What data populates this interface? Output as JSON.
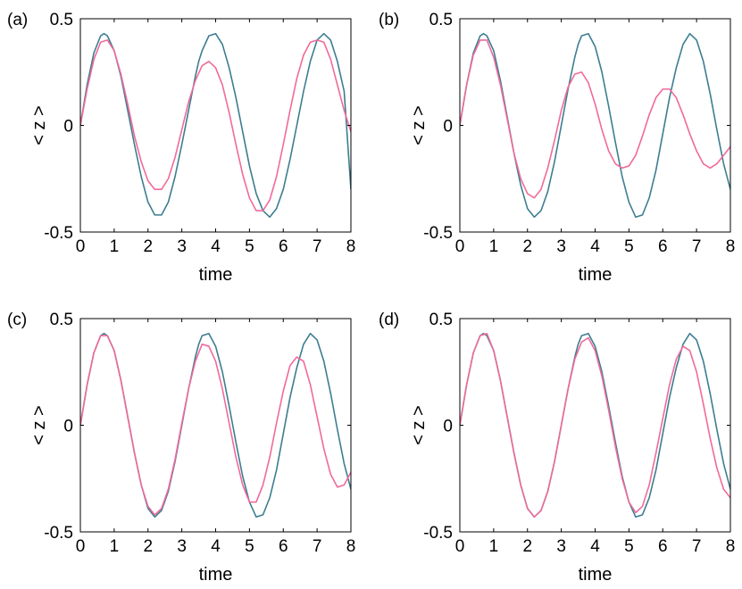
{
  "colors": {
    "reference": "#3d7d91",
    "comparison": "#f06a9b",
    "axis": "#000000"
  },
  "chart_data": [
    {
      "panel_label": "(a)",
      "type": "line",
      "xlabel": "time",
      "ylabel": "< z >",
      "xlim": [
        0,
        8
      ],
      "ylim": [
        -0.5,
        0.5
      ],
      "xticks": [
        "0",
        "1",
        "2",
        "3",
        "4",
        "5",
        "6",
        "7",
        "8"
      ],
      "yticks": [
        "-0.5",
        "0",
        "0.5"
      ],
      "series": [
        {
          "color": "#3d7d91",
          "x": [
            0,
            0.2,
            0.4,
            0.6,
            0.7,
            0.8,
            1.0,
            1.2,
            1.4,
            1.6,
            1.8,
            2.0,
            2.2,
            2.4,
            2.6,
            2.8,
            3.0,
            3.2,
            3.4,
            3.5,
            3.6,
            3.8,
            4.0,
            4.2,
            4.4,
            4.6,
            4.8,
            5.0,
            5.2,
            5.4,
            5.6,
            5.8,
            6.0,
            6.2,
            6.3,
            6.4,
            6.6,
            6.8,
            7.0,
            7.2,
            7.4,
            7.6,
            7.8,
            8.0
          ],
          "y": [
            0,
            0.19,
            0.34,
            0.42,
            0.43,
            0.42,
            0.35,
            0.23,
            0.07,
            -0.09,
            -0.24,
            -0.36,
            -0.42,
            -0.42,
            -0.36,
            -0.24,
            -0.09,
            0.07,
            0.23,
            0.3,
            0.35,
            0.42,
            0.43,
            0.38,
            0.27,
            0.13,
            -0.03,
            -0.19,
            -0.32,
            -0.4,
            -0.43,
            -0.39,
            -0.3,
            -0.16,
            -0.08,
            0,
            0.16,
            0.3,
            0.4,
            0.43,
            0.4,
            0.3,
            0.16,
            -0.3
          ]
        },
        {
          "color": "#f06a9b",
          "x": [
            0,
            0.2,
            0.4,
            0.6,
            0.8,
            1.0,
            1.2,
            1.4,
            1.6,
            1.8,
            2.0,
            2.2,
            2.4,
            2.6,
            2.8,
            3.0,
            3.2,
            3.4,
            3.6,
            3.8,
            4.0,
            4.2,
            4.4,
            4.6,
            4.8,
            5.0,
            5.2,
            5.4,
            5.6,
            5.8,
            6.0,
            6.2,
            6.4,
            6.6,
            6.8,
            7.0,
            7.2,
            7.4,
            7.6,
            7.8,
            8.0
          ],
          "y": [
            0,
            0.17,
            0.31,
            0.39,
            0.4,
            0.35,
            0.24,
            0.1,
            -0.05,
            -0.17,
            -0.26,
            -0.3,
            -0.3,
            -0.25,
            -0.15,
            -0.02,
            0.11,
            0.21,
            0.28,
            0.3,
            0.27,
            0.19,
            0.06,
            -0.09,
            -0.23,
            -0.34,
            -0.4,
            -0.4,
            -0.35,
            -0.24,
            -0.09,
            0.07,
            0.22,
            0.33,
            0.39,
            0.4,
            0.39,
            0.31,
            0.19,
            0.07,
            -0.03
          ]
        }
      ]
    },
    {
      "panel_label": "(b)",
      "type": "line",
      "xlabel": "time",
      "ylabel": "< z >",
      "xlim": [
        0,
        8
      ],
      "ylim": [
        -0.5,
        0.5
      ],
      "xticks": [
        "0",
        "1",
        "2",
        "3",
        "4",
        "5",
        "6",
        "7",
        "8"
      ],
      "yticks": [
        "-0.5",
        "0",
        "0.5"
      ],
      "series": [
        {
          "color": "#3d7d91",
          "x": [
            0,
            0.2,
            0.4,
            0.6,
            0.7,
            0.8,
            1.0,
            1.2,
            1.4,
            1.6,
            1.8,
            2.0,
            2.2,
            2.4,
            2.6,
            2.8,
            3.0,
            3.2,
            3.4,
            3.5,
            3.6,
            3.8,
            4.0,
            4.2,
            4.4,
            4.6,
            4.8,
            5.0,
            5.2,
            5.4,
            5.6,
            5.8,
            6.0,
            6.2,
            6.3,
            6.4,
            6.6,
            6.8,
            7.0,
            7.2,
            7.4,
            7.6,
            7.8,
            8.0
          ],
          "y": [
            0,
            0.19,
            0.34,
            0.42,
            0.43,
            0.42,
            0.35,
            0.21,
            0.04,
            -0.13,
            -0.28,
            -0.39,
            -0.43,
            -0.4,
            -0.31,
            -0.17,
            0,
            0.17,
            0.32,
            0.38,
            0.42,
            0.43,
            0.37,
            0.25,
            0.09,
            -0.08,
            -0.24,
            -0.36,
            -0.43,
            -0.42,
            -0.34,
            -0.21,
            -0.04,
            0.13,
            0.2,
            0.27,
            0.38,
            0.43,
            0.4,
            0.3,
            0.15,
            -0.02,
            -0.18,
            -0.3
          ]
        },
        {
          "color": "#f06a9b",
          "x": [
            0,
            0.2,
            0.4,
            0.6,
            0.8,
            1.0,
            1.2,
            1.4,
            1.6,
            1.8,
            2.0,
            2.2,
            2.4,
            2.6,
            2.8,
            3.0,
            3.2,
            3.4,
            3.6,
            3.8,
            4.0,
            4.2,
            4.4,
            4.6,
            4.8,
            5.0,
            5.2,
            5.4,
            5.6,
            5.8,
            6.0,
            6.2,
            6.4,
            6.6,
            6.8,
            7.0,
            7.2,
            7.4,
            7.6,
            7.8,
            8.0
          ],
          "y": [
            0,
            0.19,
            0.33,
            0.4,
            0.4,
            0.32,
            0.19,
            0.03,
            -0.13,
            -0.25,
            -0.32,
            -0.34,
            -0.3,
            -0.2,
            -0.07,
            0.07,
            0.18,
            0.24,
            0.25,
            0.2,
            0.1,
            -0.02,
            -0.12,
            -0.18,
            -0.2,
            -0.19,
            -0.14,
            -0.05,
            0.05,
            0.13,
            0.17,
            0.17,
            0.13,
            0.05,
            -0.04,
            -0.12,
            -0.18,
            -0.2,
            -0.18,
            -0.14,
            -0.1
          ]
        }
      ]
    },
    {
      "panel_label": "(c)",
      "type": "line",
      "xlabel": "time",
      "ylabel": "< z >",
      "xlim": [
        0,
        8
      ],
      "ylim": [
        -0.5,
        0.5
      ],
      "xticks": [
        "0",
        "1",
        "2",
        "3",
        "4",
        "5",
        "6",
        "7",
        "8"
      ],
      "yticks": [
        "-0.5",
        "0",
        "0.5"
      ],
      "series": [
        {
          "color": "#3d7d91",
          "x": [
            0,
            0.2,
            0.4,
            0.6,
            0.7,
            0.8,
            1.0,
            1.2,
            1.4,
            1.6,
            1.8,
            2.0,
            2.2,
            2.4,
            2.6,
            2.8,
            3.0,
            3.2,
            3.4,
            3.5,
            3.6,
            3.8,
            4.0,
            4.2,
            4.4,
            4.6,
            4.8,
            5.0,
            5.2,
            5.4,
            5.6,
            5.8,
            6.0,
            6.2,
            6.3,
            6.4,
            6.6,
            6.8,
            7.0,
            7.2,
            7.4,
            7.6,
            7.8,
            8.0
          ],
          "y": [
            0,
            0.19,
            0.34,
            0.42,
            0.43,
            0.42,
            0.35,
            0.21,
            0.04,
            -0.13,
            -0.28,
            -0.39,
            -0.43,
            -0.4,
            -0.31,
            -0.17,
            0,
            0.17,
            0.32,
            0.38,
            0.42,
            0.43,
            0.37,
            0.25,
            0.09,
            -0.08,
            -0.24,
            -0.36,
            -0.43,
            -0.42,
            -0.34,
            -0.21,
            -0.04,
            0.13,
            0.2,
            0.27,
            0.38,
            0.43,
            0.4,
            0.3,
            0.15,
            -0.02,
            -0.18,
            -0.3
          ]
        },
        {
          "color": "#f06a9b",
          "x": [
            0,
            0.2,
            0.4,
            0.6,
            0.8,
            1.0,
            1.2,
            1.4,
            1.6,
            1.8,
            2.0,
            2.2,
            2.4,
            2.6,
            2.8,
            3.0,
            3.2,
            3.4,
            3.6,
            3.8,
            4.0,
            4.2,
            4.4,
            4.6,
            4.8,
            5.0,
            5.2,
            5.4,
            5.6,
            5.8,
            6.0,
            6.2,
            6.4,
            6.6,
            6.8,
            7.0,
            7.2,
            7.4,
            7.6,
            7.8,
            8.0
          ],
          "y": [
            0,
            0.19,
            0.34,
            0.42,
            0.42,
            0.35,
            0.21,
            0.04,
            -0.13,
            -0.28,
            -0.38,
            -0.42,
            -0.39,
            -0.3,
            -0.16,
            0.01,
            0.17,
            0.3,
            0.38,
            0.37,
            0.3,
            0.17,
            0.01,
            -0.15,
            -0.28,
            -0.36,
            -0.36,
            -0.28,
            -0.15,
            0.01,
            0.16,
            0.28,
            0.32,
            0.3,
            0.19,
            0.04,
            -0.11,
            -0.23,
            -0.29,
            -0.28,
            -0.22
          ]
        }
      ]
    },
    {
      "panel_label": "(d)",
      "type": "line",
      "xlabel": "time",
      "ylabel": "< z >",
      "xlim": [
        0,
        8
      ],
      "ylim": [
        -0.5,
        0.5
      ],
      "xticks": [
        "0",
        "1",
        "2",
        "3",
        "4",
        "5",
        "6",
        "7",
        "8"
      ],
      "yticks": [
        "-0.5",
        "0",
        "0.5"
      ],
      "series": [
        {
          "color": "#3d7d91",
          "x": [
            0,
            0.2,
            0.4,
            0.6,
            0.7,
            0.8,
            1.0,
            1.2,
            1.4,
            1.6,
            1.8,
            2.0,
            2.2,
            2.4,
            2.6,
            2.8,
            3.0,
            3.2,
            3.4,
            3.5,
            3.6,
            3.8,
            4.0,
            4.2,
            4.4,
            4.6,
            4.8,
            5.0,
            5.2,
            5.4,
            5.6,
            5.8,
            6.0,
            6.2,
            6.3,
            6.4,
            6.6,
            6.8,
            7.0,
            7.2,
            7.4,
            7.6,
            7.8,
            8.0
          ],
          "y": [
            0,
            0.19,
            0.34,
            0.42,
            0.43,
            0.42,
            0.35,
            0.21,
            0.04,
            -0.13,
            -0.28,
            -0.39,
            -0.43,
            -0.4,
            -0.31,
            -0.17,
            0,
            0.17,
            0.32,
            0.38,
            0.42,
            0.43,
            0.37,
            0.25,
            0.09,
            -0.08,
            -0.24,
            -0.36,
            -0.43,
            -0.42,
            -0.34,
            -0.21,
            -0.04,
            0.13,
            0.2,
            0.27,
            0.38,
            0.43,
            0.4,
            0.3,
            0.15,
            -0.02,
            -0.18,
            -0.3
          ]
        },
        {
          "color": "#f06a9b",
          "x": [
            0,
            0.2,
            0.4,
            0.6,
            0.8,
            1.0,
            1.2,
            1.4,
            1.6,
            1.8,
            2.0,
            2.2,
            2.4,
            2.6,
            2.8,
            3.0,
            3.2,
            3.4,
            3.6,
            3.8,
            4.0,
            4.2,
            4.4,
            4.6,
            4.8,
            5.0,
            5.2,
            5.4,
            5.6,
            5.8,
            6.0,
            6.2,
            6.4,
            6.6,
            6.8,
            7.0,
            7.2,
            7.4,
            7.6,
            7.8,
            8.0
          ],
          "y": [
            0,
            0.19,
            0.34,
            0.42,
            0.43,
            0.35,
            0.21,
            0.04,
            -0.13,
            -0.28,
            -0.39,
            -0.43,
            -0.4,
            -0.31,
            -0.17,
            0,
            0.17,
            0.31,
            0.39,
            0.41,
            0.35,
            0.23,
            0.07,
            -0.1,
            -0.25,
            -0.36,
            -0.41,
            -0.38,
            -0.28,
            -0.13,
            0.03,
            0.19,
            0.31,
            0.37,
            0.35,
            0.25,
            0.1,
            -0.06,
            -0.2,
            -0.3,
            -0.34
          ]
        }
      ]
    }
  ]
}
